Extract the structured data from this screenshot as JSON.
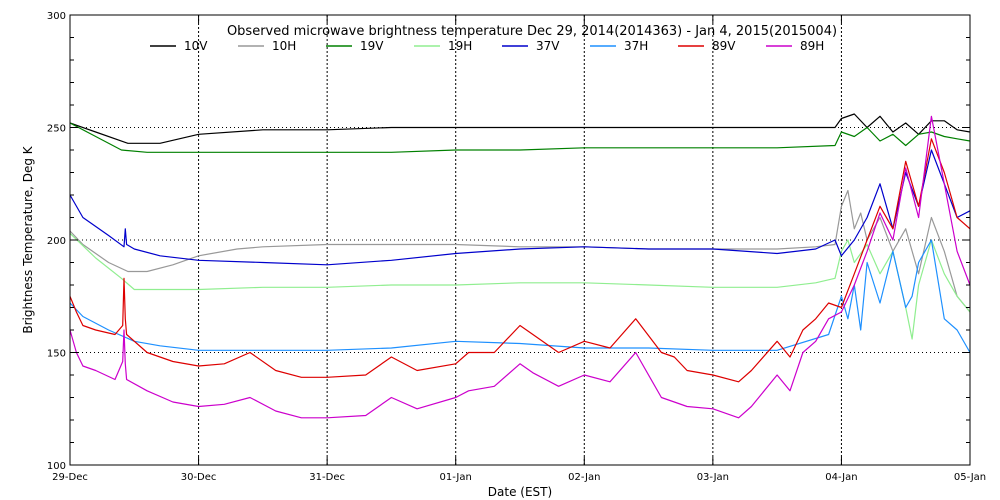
{
  "chart_data": {
    "type": "line",
    "title": "Observed microwave brightness temperature Dec 29, 2014(2014363) - Jan  4, 2015(2015004)",
    "xlabel": "Date (EST)",
    "ylabel": "Brightness Temperature, Deg K",
    "xlim": [
      0,
      7
    ],
    "ylim": [
      100,
      300
    ],
    "x_ticks": [
      {
        "pos": 0,
        "label": "29-Dec"
      },
      {
        "pos": 1,
        "label": "30-Dec"
      },
      {
        "pos": 2,
        "label": "31-Dec"
      },
      {
        "pos": 3,
        "label": "01-Jan"
      },
      {
        "pos": 4,
        "label": "02-Jan"
      },
      {
        "pos": 5,
        "label": "03-Jan"
      },
      {
        "pos": 6,
        "label": "04-Jan"
      },
      {
        "pos": 7,
        "label": "05-Jan"
      }
    ],
    "y_ticks": [
      100,
      150,
      200,
      250,
      300
    ],
    "vertical_gridlines": [
      1,
      2,
      3,
      4,
      5,
      6
    ],
    "horizontal_gridlines": [
      150,
      200,
      250
    ],
    "legend_placement": "top",
    "series": [
      {
        "name": "10V",
        "color": "#000000",
        "x": [
          0,
          0.2,
          0.45,
          0.7,
          1.0,
          1.5,
          2.0,
          2.5,
          3.0,
          3.5,
          4.0,
          4.5,
          5.0,
          5.5,
          5.95,
          6.0,
          6.1,
          6.2,
          6.3,
          6.4,
          6.5,
          6.6,
          6.7,
          6.8,
          6.9,
          7.0
        ],
        "y": [
          252,
          248,
          243,
          243,
          247,
          249,
          249,
          250,
          250,
          250,
          250,
          250,
          250,
          250,
          250,
          254,
          256,
          250,
          255,
          248,
          252,
          247,
          253,
          253,
          249,
          248
        ]
      },
      {
        "name": "10H",
        "color": "#999999",
        "x": [
          0,
          0.1,
          0.3,
          0.45,
          0.6,
          0.8,
          1.0,
          1.3,
          1.5,
          2.0,
          2.5,
          3.0,
          3.5,
          4.0,
          4.5,
          5.0,
          5.5,
          5.8,
          5.95,
          6.0,
          6.05,
          6.1,
          6.15,
          6.2,
          6.3,
          6.4,
          6.5,
          6.6,
          6.7,
          6.8,
          6.9,
          7.0
        ],
        "y": [
          204,
          198,
          190,
          186,
          186,
          189,
          193,
          196,
          197,
          198,
          198,
          198,
          197,
          197,
          196,
          196,
          196,
          197,
          198,
          215,
          222,
          205,
          212,
          200,
          210,
          195,
          205,
          185,
          210,
          195,
          175,
          168
        ]
      },
      {
        "name": "19V",
        "color": "#008000",
        "x": [
          0,
          0.2,
          0.4,
          0.6,
          1.0,
          1.5,
          2.0,
          2.5,
          3.0,
          3.5,
          4.0,
          4.5,
          5.0,
          5.5,
          5.95,
          6.0,
          6.1,
          6.2,
          6.3,
          6.4,
          6.5,
          6.6,
          6.7,
          6.8,
          6.9,
          7.0
        ],
        "y": [
          252,
          246,
          240,
          239,
          239,
          239,
          239,
          239,
          240,
          240,
          241,
          241,
          241,
          241,
          242,
          248,
          246,
          250,
          244,
          247,
          242,
          247,
          248,
          246,
          245,
          244
        ]
      },
      {
        "name": "19H",
        "color": "#90ee90",
        "x": [
          0,
          0.2,
          0.4,
          0.5,
          0.8,
          1.0,
          1.5,
          2.0,
          2.5,
          3.0,
          3.5,
          4.0,
          4.5,
          5.0,
          5.5,
          5.8,
          5.95,
          6.0,
          6.05,
          6.1,
          6.2,
          6.3,
          6.4,
          6.5,
          6.55,
          6.6,
          6.7,
          6.8,
          6.9,
          7.0
        ],
        "y": [
          203,
          192,
          183,
          178,
          178,
          178,
          179,
          179,
          180,
          180,
          181,
          181,
          180,
          179,
          179,
          181,
          183,
          195,
          200,
          190,
          198,
          185,
          195,
          170,
          156,
          180,
          200,
          185,
          175,
          168
        ]
      },
      {
        "name": "37V",
        "color": "#0000cc",
        "x": [
          0,
          0.1,
          0.3,
          0.42,
          0.43,
          0.44,
          0.5,
          0.7,
          1.0,
          1.5,
          2.0,
          2.5,
          3.0,
          3.5,
          4.0,
          4.5,
          5.0,
          5.5,
          5.8,
          5.95,
          6.0,
          6.1,
          6.2,
          6.3,
          6.4,
          6.5,
          6.6,
          6.7,
          6.8,
          6.9,
          7.0
        ],
        "y": [
          220,
          210,
          202,
          197,
          205,
          198,
          196,
          193,
          191,
          190,
          189,
          191,
          194,
          196,
          197,
          196,
          196,
          194,
          196,
          200,
          193,
          200,
          210,
          225,
          205,
          230,
          215,
          240,
          225,
          210,
          213
        ]
      },
      {
        "name": "37H",
        "color": "#1e90ff",
        "x": [
          0,
          0.1,
          0.3,
          0.5,
          0.7,
          1.0,
          1.5,
          2.0,
          2.5,
          3.0,
          3.5,
          4.0,
          4.5,
          5.0,
          5.5,
          5.9,
          6.0,
          6.05,
          6.1,
          6.15,
          6.2,
          6.3,
          6.4,
          6.5,
          6.55,
          6.6,
          6.7,
          6.8,
          6.9,
          7.0
        ],
        "y": [
          172,
          166,
          160,
          155,
          153,
          151,
          151,
          151,
          152,
          155,
          154,
          152,
          152,
          151,
          151,
          158,
          175,
          165,
          180,
          160,
          190,
          172,
          195,
          170,
          175,
          190,
          200,
          165,
          160,
          150
        ]
      },
      {
        "name": "89V",
        "color": "#dd0000",
        "x": [
          0,
          0.05,
          0.1,
          0.2,
          0.35,
          0.41,
          0.42,
          0.43,
          0.44,
          0.6,
          0.8,
          1.0,
          1.2,
          1.4,
          1.6,
          1.8,
          2.0,
          2.3,
          2.5,
          2.7,
          3.0,
          3.1,
          3.3,
          3.5,
          3.6,
          3.8,
          4.0,
          4.2,
          4.4,
          4.6,
          4.7,
          4.8,
          5.0,
          5.2,
          5.3,
          5.5,
          5.6,
          5.7,
          5.8,
          5.9,
          6.0,
          6.1,
          6.2,
          6.3,
          6.4,
          6.5,
          6.6,
          6.7,
          6.8,
          6.9,
          7.0
        ],
        "y": [
          175,
          168,
          162,
          160,
          158,
          162,
          183,
          165,
          158,
          150,
          146,
          144,
          145,
          150,
          142,
          139,
          139,
          140,
          148,
          142,
          145,
          150,
          150,
          162,
          158,
          150,
          155,
          152,
          165,
          150,
          148,
          142,
          140,
          137,
          142,
          155,
          148,
          160,
          165,
          172,
          170,
          185,
          200,
          215,
          205,
          235,
          215,
          245,
          230,
          210,
          205
        ]
      },
      {
        "name": "89H",
        "color": "#cc00cc",
        "x": [
          0,
          0.05,
          0.1,
          0.2,
          0.35,
          0.41,
          0.42,
          0.43,
          0.44,
          0.6,
          0.8,
          1.0,
          1.2,
          1.4,
          1.6,
          1.8,
          2.0,
          2.3,
          2.5,
          2.7,
          3.0,
          3.1,
          3.3,
          3.5,
          3.6,
          3.8,
          4.0,
          4.2,
          4.4,
          4.6,
          4.7,
          4.8,
          5.0,
          5.2,
          5.3,
          5.5,
          5.6,
          5.7,
          5.8,
          5.9,
          6.0,
          6.1,
          6.2,
          6.3,
          6.4,
          6.5,
          6.6,
          6.7,
          6.8,
          6.9,
          7.0
        ],
        "y": [
          160,
          150,
          144,
          142,
          138,
          146,
          160,
          145,
          138,
          133,
          128,
          126,
          127,
          130,
          124,
          121,
          121,
          122,
          130,
          125,
          130,
          133,
          135,
          145,
          141,
          135,
          140,
          137,
          150,
          130,
          128,
          126,
          125,
          121,
          126,
          140,
          133,
          150,
          155,
          165,
          168,
          180,
          195,
          212,
          200,
          232,
          210,
          255,
          225,
          195,
          180
        ]
      }
    ]
  }
}
